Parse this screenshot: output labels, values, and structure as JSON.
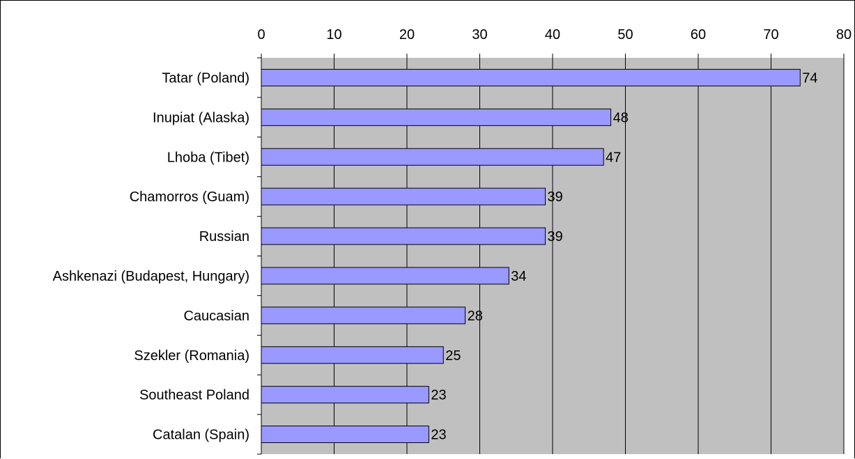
{
  "chart_data": {
    "type": "bar",
    "orientation": "horizontal",
    "categories": [
      "Tatar (Poland)",
      "Inupiat (Alaska)",
      "Lhoba (Tibet)",
      "Chamorros (Guam)",
      "Russian",
      "Ashkenazi (Budapest, Hungary)",
      "Caucasian",
      "Szekler (Romania)",
      "Southeast Poland",
      "Catalan (Spain)"
    ],
    "values": [
      74,
      48,
      47,
      39,
      39,
      34,
      28,
      25,
      23,
      23
    ],
    "data_labels": [
      "74",
      "48",
      "47",
      "39",
      "39",
      "34",
      "28",
      "25",
      "23",
      "23"
    ],
    "xlim": [
      0,
      80
    ],
    "x_ticks": [
      0,
      10,
      20,
      30,
      40,
      50,
      60,
      70,
      80
    ],
    "x_tick_labels": [
      "0",
      "10",
      "20",
      "30",
      "40",
      "50",
      "60",
      "70",
      "80"
    ],
    "x_axis_position": "top",
    "grid": true,
    "legend": false,
    "colors": {
      "bar_fill": "#9999ff",
      "bar_stroke": "#000000",
      "plot_background": "#c0c0c0",
      "gridline": "#000000"
    }
  }
}
